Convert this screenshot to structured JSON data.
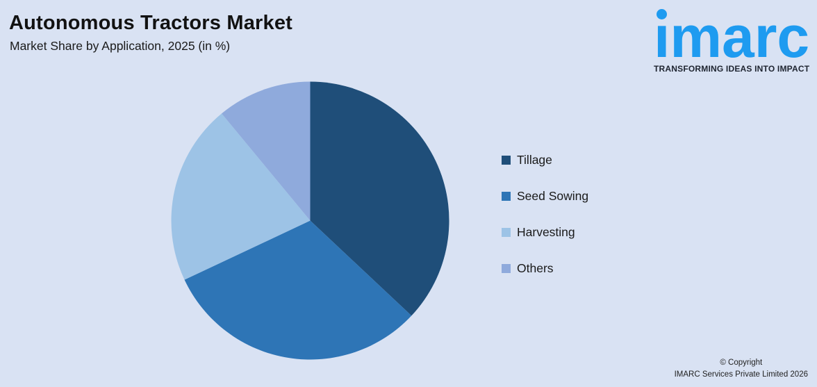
{
  "page": {
    "background": "#D9E2F3"
  },
  "header": {
    "title": "Autonomous Tractors Market",
    "subtitle": "Market Share by Application, 2025 (in %)"
  },
  "logo": {
    "brand": "imarc",
    "tagline": "TRANSFORMING IDEAS INTO IMPACT",
    "brand_color": "#1E9BF0",
    "tagline_color": "#1E2430"
  },
  "chart_data": {
    "type": "pie",
    "title": "Autonomous Tractors Market",
    "subtitle": "Market Share by Application, 2025 (in %)",
    "unit": "%",
    "categories": [
      "Tillage",
      "Seed Sowing",
      "Harvesting",
      "Others"
    ],
    "values": [
      37,
      31,
      21,
      11
    ],
    "colors": [
      "#1F4E79",
      "#2E75B6",
      "#9DC3E6",
      "#8FAADC"
    ],
    "start_angle_deg": 0,
    "direction": "clockwise",
    "legend_position": "right",
    "data_labels_shown": false
  },
  "footer": {
    "copyright_line1": "© Copyright",
    "copyright_line2": "IMARC Services Private Limited 2026"
  }
}
